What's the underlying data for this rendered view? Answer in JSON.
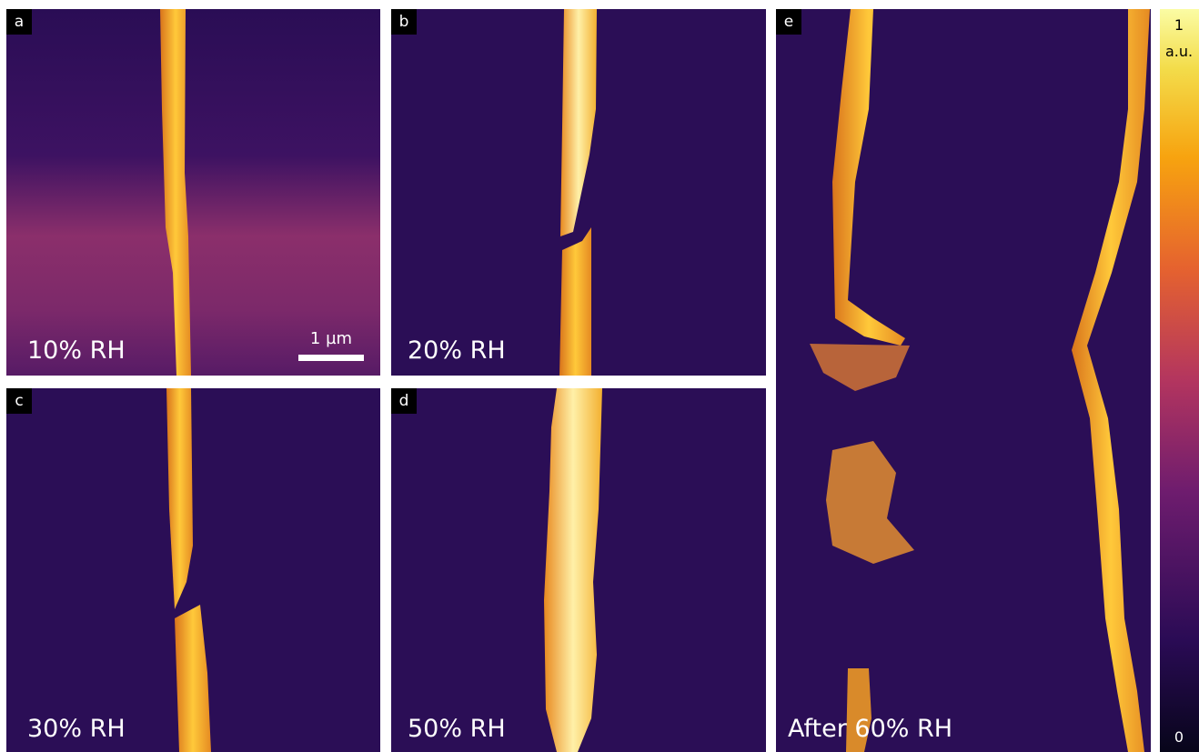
{
  "panels": [
    {
      "letter": "a",
      "label": "10% RH"
    },
    {
      "letter": "b",
      "label": "20% RH"
    },
    {
      "letter": "c",
      "label": "30% RH"
    },
    {
      "letter": "d",
      "label": "50% RH"
    },
    {
      "letter": "e",
      "label": "After 60% RH"
    }
  ],
  "scale_bar": {
    "label": "1 µm"
  },
  "colorbar": {
    "max": 1,
    "unit": "a.u.",
    "min": 0
  }
}
